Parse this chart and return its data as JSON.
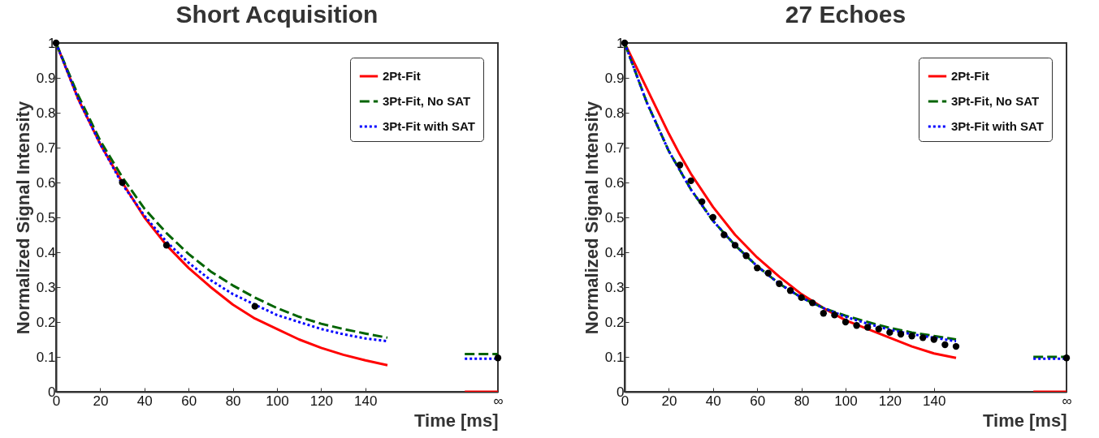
{
  "chart_data": [
    {
      "type": "line",
      "title": "Short Acquisition",
      "xlabel": "Time [ms]",
      "ylabel": "Normalized Signal Intensity",
      "xlim": [
        0,
        200
      ],
      "ylim": [
        0,
        1
      ],
      "xticks": [
        0,
        20,
        40,
        60,
        80,
        100,
        120,
        140,
        {
          "value": 200,
          "label": "∞"
        }
      ],
      "yticks": [
        0,
        0.1,
        0.2,
        0.3,
        0.4,
        0.5,
        0.6,
        0.7,
        0.8,
        0.9,
        1
      ],
      "legend": "top right",
      "series": [
        {
          "name": "2Pt-Fit",
          "color": "#ff0000",
          "line_style": "solid",
          "x": [
            0,
            10,
            20,
            30,
            40,
            50,
            60,
            70,
            80,
            90,
            100,
            110,
            120,
            130,
            140,
            150,
            170,
            185,
            200
          ],
          "values": [
            1,
            0.84,
            0.71,
            0.6,
            0.5,
            0.42,
            0.355,
            0.3,
            0.25,
            0.21,
            0.18,
            0.15,
            0.126,
            0.106,
            0.09,
            0.076,
            null,
            0,
            0
          ]
        },
        {
          "name": "3Pt-Fit, No SAT",
          "color": "#006400",
          "line_style": "dashed",
          "x": [
            0,
            10,
            20,
            30,
            40,
            50,
            60,
            70,
            80,
            90,
            100,
            110,
            120,
            130,
            140,
            150,
            170,
            185,
            200
          ],
          "values": [
            1,
            0.85,
            0.72,
            0.615,
            0.525,
            0.455,
            0.395,
            0.345,
            0.305,
            0.27,
            0.24,
            0.215,
            0.195,
            0.18,
            0.167,
            0.155,
            null,
            0.108,
            0.108
          ]
        },
        {
          "name": "3Pt-Fit with SAT",
          "color": "#0000ff",
          "line_style": "dotted",
          "x": [
            0,
            10,
            20,
            30,
            40,
            50,
            60,
            70,
            80,
            90,
            100,
            110,
            120,
            130,
            140,
            150,
            170,
            185,
            200
          ],
          "values": [
            1,
            0.84,
            0.71,
            0.595,
            0.505,
            0.43,
            0.37,
            0.32,
            0.28,
            0.25,
            0.22,
            0.2,
            0.18,
            0.165,
            0.153,
            0.145,
            null,
            0.095,
            0.095
          ]
        },
        {
          "type": "scatter",
          "color": "#000000",
          "marker": "circle",
          "x": [
            0,
            30,
            50,
            90,
            200
          ],
          "values": [
            1,
            0.6,
            0.42,
            0.245,
            0.097
          ]
        }
      ]
    },
    {
      "type": "line",
      "title": "27 Echoes",
      "xlabel": "Time [ms]",
      "ylabel": "Normalized Signal Intensity",
      "xlim": [
        0,
        200
      ],
      "ylim": [
        0,
        1
      ],
      "xticks": [
        0,
        20,
        40,
        60,
        80,
        100,
        120,
        140,
        {
          "value": 200,
          "label": "∞"
        }
      ],
      "yticks": [
        0,
        0.1,
        0.2,
        0.3,
        0.4,
        0.5,
        0.6,
        0.7,
        0.8,
        0.9,
        1
      ],
      "legend": "top right",
      "series": [
        {
          "name": "2Pt-Fit",
          "color": "#ff0000",
          "line_style": "solid",
          "x": [
            0,
            10,
            20,
            25,
            30,
            40,
            50,
            60,
            70,
            80,
            90,
            100,
            110,
            120,
            130,
            140,
            150,
            170,
            185,
            200
          ],
          "values": [
            1,
            0.87,
            0.74,
            0.68,
            0.625,
            0.53,
            0.45,
            0.385,
            0.33,
            0.28,
            0.24,
            0.205,
            0.18,
            0.155,
            0.13,
            0.11,
            0.097,
            null,
            0,
            0
          ]
        },
        {
          "name": "3Pt-Fit, No SAT",
          "color": "#006400",
          "line_style": "dashed",
          "x": [
            0,
            10,
            20,
            30,
            40,
            50,
            60,
            70,
            80,
            90,
            100,
            110,
            120,
            130,
            140,
            150,
            170,
            185,
            200
          ],
          "values": [
            1,
            0.83,
            0.69,
            0.58,
            0.49,
            0.42,
            0.36,
            0.31,
            0.27,
            0.24,
            0.218,
            0.2,
            0.183,
            0.17,
            0.16,
            0.15,
            null,
            0.1,
            0.1
          ]
        },
        {
          "name": "3Pt-Fit with SAT",
          "color": "#0000ff",
          "line_style": "dotted",
          "x": [
            0,
            10,
            20,
            30,
            40,
            50,
            60,
            70,
            80,
            90,
            100,
            110,
            120,
            130,
            140,
            150,
            170,
            185,
            200
          ],
          "values": [
            1,
            0.83,
            0.69,
            0.58,
            0.49,
            0.42,
            0.36,
            0.31,
            0.27,
            0.24,
            0.215,
            0.195,
            0.178,
            0.165,
            0.155,
            0.145,
            null,
            0.095,
            0.095
          ]
        },
        {
          "type": "scatter",
          "color": "#000000",
          "marker": "circle",
          "x": [
            0,
            25,
            30,
            35,
            40,
            45,
            50,
            55,
            60,
            65,
            70,
            75,
            80,
            85,
            90,
            95,
            100,
            105,
            110,
            115,
            120,
            125,
            130,
            135,
            140,
            145,
            150,
            200
          ],
          "values": [
            1,
            0.65,
            0.605,
            0.545,
            0.5,
            0.45,
            0.42,
            0.39,
            0.355,
            0.34,
            0.31,
            0.29,
            0.27,
            0.255,
            0.225,
            0.22,
            0.2,
            0.19,
            0.185,
            0.18,
            0.17,
            0.165,
            0.16,
            0.155,
            0.15,
            0.135,
            0.13,
            0.097
          ]
        }
      ]
    }
  ]
}
